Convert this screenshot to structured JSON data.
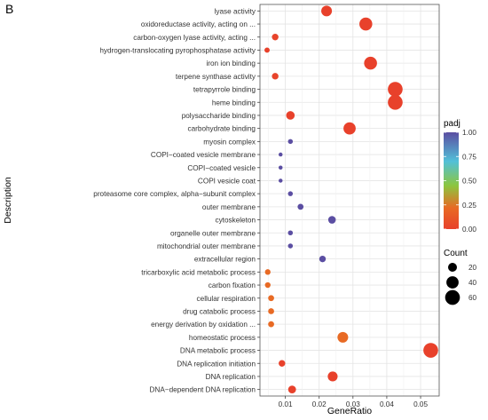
{
  "panel_label": "B",
  "chart_data": {
    "type": "scatter",
    "xlabel": "GeneRatio",
    "ylabel": "Description",
    "xlim": [
      0.0025,
      0.0555
    ],
    "x_ticks": [
      0.01,
      0.02,
      0.03,
      0.04,
      0.05
    ],
    "x_tick_labels": [
      "0.01",
      "0.02",
      "0.03",
      "0.04",
      "0.05"
    ],
    "grid": true,
    "categories": [
      "lyase activity",
      "oxidoreductase activity, acting on ...",
      "carbon-oxygen lyase activity, acting ...",
      "hydrogen-translocating pyrophosphatase activity",
      "iron ion binding",
      "terpene synthase activity",
      "tetrapyrrole binding",
      "heme binding",
      "polysaccharide binding",
      "carbohydrate binding",
      "myosin complex",
      "COPI−coated vesicle membrane",
      "COPI−coated vesicle",
      "COPI vesicle coat",
      "proteasome core complex, alpha−subunit complex",
      "outer membrane",
      "cytoskeleton",
      "organelle outer membrane",
      "mitochondrial outer membrane",
      "extracellular region",
      "tricarboxylic acid metabolic process",
      "carbon fixation",
      "cellular respiration",
      "drug catabolic process",
      "energy derivation by oxidation ...",
      "homeostatic process",
      "DNA metabolic process",
      "DNA replication initiation",
      "DNA replication",
      "DNA−dependent DNA replication"
    ],
    "points": [
      {
        "x": 0.0222,
        "count": 30,
        "padj": 0.0
      },
      {
        "x": 0.0338,
        "count": 45,
        "padj": 0.0
      },
      {
        "x": 0.007,
        "count": 10,
        "padj": 0.02
      },
      {
        "x": 0.0046,
        "count": 6,
        "padj": 0.0
      },
      {
        "x": 0.0352,
        "count": 45,
        "padj": 0.0
      },
      {
        "x": 0.007,
        "count": 10,
        "padj": 0.02
      },
      {
        "x": 0.0425,
        "count": 60,
        "padj": 0.0
      },
      {
        "x": 0.0425,
        "count": 60,
        "padj": 0.0
      },
      {
        "x": 0.0115,
        "count": 18,
        "padj": 0.0
      },
      {
        "x": 0.029,
        "count": 40,
        "padj": 0.0
      },
      {
        "x": 0.0115,
        "count": 5,
        "padj": 1.0
      },
      {
        "x": 0.0086,
        "count": 3,
        "padj": 1.0
      },
      {
        "x": 0.0086,
        "count": 3,
        "padj": 1.0
      },
      {
        "x": 0.0086,
        "count": 3,
        "padj": 1.0
      },
      {
        "x": 0.0115,
        "count": 5,
        "padj": 1.0
      },
      {
        "x": 0.0145,
        "count": 8,
        "padj": 1.0
      },
      {
        "x": 0.0238,
        "count": 14,
        "padj": 1.0
      },
      {
        "x": 0.0115,
        "count": 5,
        "padj": 1.0
      },
      {
        "x": 0.0115,
        "count": 5,
        "padj": 1.0
      },
      {
        "x": 0.021,
        "count": 10,
        "padj": 1.0
      },
      {
        "x": 0.0048,
        "count": 7,
        "padj": 0.3
      },
      {
        "x": 0.0048,
        "count": 7,
        "padj": 0.3
      },
      {
        "x": 0.0058,
        "count": 8,
        "padj": 0.3
      },
      {
        "x": 0.0058,
        "count": 8,
        "padj": 0.3
      },
      {
        "x": 0.0058,
        "count": 8,
        "padj": 0.3
      },
      {
        "x": 0.027,
        "count": 30,
        "padj": 0.3
      },
      {
        "x": 0.053,
        "count": 60,
        "padj": 0.0
      },
      {
        "x": 0.009,
        "count": 10,
        "padj": 0.0
      },
      {
        "x": 0.024,
        "count": 25,
        "padj": 0.0
      },
      {
        "x": 0.012,
        "count": 15,
        "padj": 0.0
      }
    ],
    "legend_color": {
      "title": "padj",
      "range": [
        0,
        1
      ],
      "ticks": [
        1.0,
        0.75,
        0.5,
        0.25,
        0.0
      ],
      "tick_labels": [
        "1.00",
        "0.75",
        "0.50",
        "0.25",
        "0.00"
      ],
      "colors": [
        "#e8412b",
        "#e86a24",
        "#8cc63f",
        "#52c0d8",
        "#5b4ea2"
      ]
    },
    "legend_size": {
      "title": "Count",
      "values": [
        20,
        40,
        60
      ],
      "labels": [
        "20",
        "40",
        "60"
      ]
    },
    "legend_placement": "right"
  }
}
